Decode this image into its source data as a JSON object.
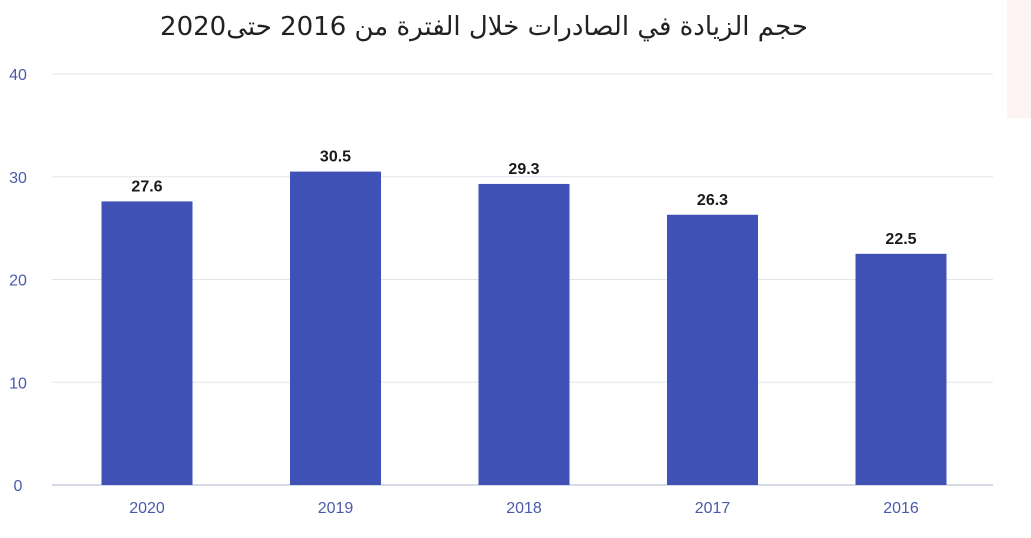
{
  "chart_data": {
    "type": "bar",
    "title": "حجم الزيادة في الصادرات خلال الفترة من 2016 حتى2020",
    "categories": [
      "2020",
      "2019",
      "2018",
      "2017",
      "2016"
    ],
    "values": [
      27.6,
      30.5,
      29.3,
      26.3,
      22.5
    ],
    "value_labels": [
      "27.6",
      "30.5",
      "29.3",
      "26.3",
      "22.5"
    ],
    "yticks": [
      "0",
      "10",
      "20",
      "30",
      "40"
    ],
    "ylim": [
      0,
      40
    ],
    "grid": true,
    "legend": "none",
    "colors": {
      "bar": "#3f51b5",
      "tick": "#4a5aa8",
      "grid": "#e2e5ee"
    }
  }
}
